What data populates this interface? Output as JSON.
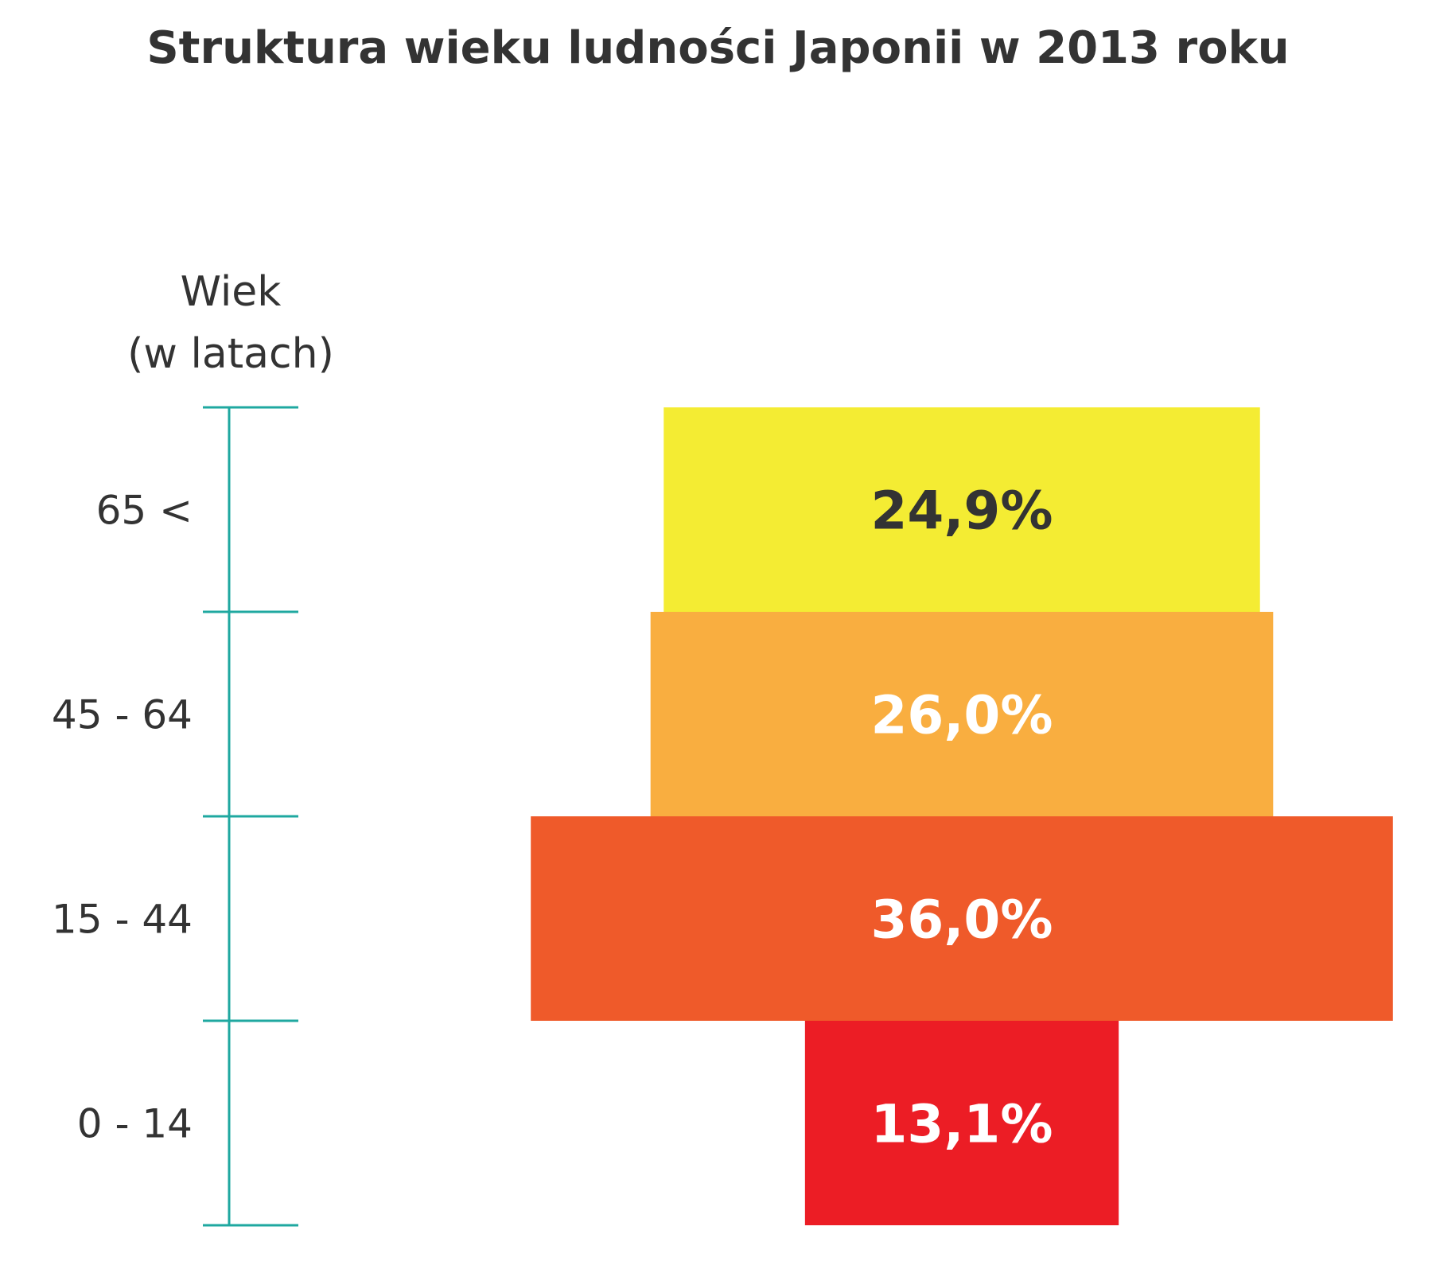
{
  "chart_data": {
    "type": "bar",
    "orientation": "horizontal",
    "title": "Struktura wieku ludności Japonii w 2013 roku",
    "ylabel_lines": [
      "Wiek",
      "(w latach)"
    ],
    "xlabel": "",
    "categories": [
      "65 <",
      "45 - 64",
      "15 - 44",
      "0 - 14"
    ],
    "values": [
      24.9,
      26.0,
      36.0,
      13.1
    ],
    "value_labels": [
      "24,9%",
      "26,0%",
      "36,0%",
      "13,1%"
    ],
    "unit": "%",
    "bar_colors": [
      "#F4EC33",
      "#F9AE40",
      "#EF5A2A",
      "#EC1D25"
    ],
    "label_colors": [
      "#333333",
      "#ffffff",
      "#ffffff",
      "#ffffff"
    ],
    "axis_color": "#1FA8A0",
    "grid": false,
    "legend": "none",
    "bars_centered": true
  }
}
